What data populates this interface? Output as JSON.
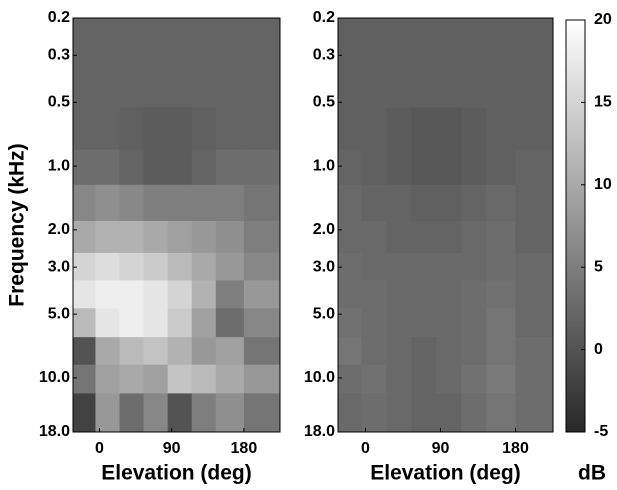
{
  "chart_data": [
    {
      "type": "heatmap",
      "xlabel": "Elevation (deg)",
      "ylabel": "Frequency (kHz)",
      "cmap": "gray",
      "log_y": true,
      "xlim": [
        -33,
        225
      ],
      "xticks": [
        0,
        90,
        180
      ],
      "ylim": [
        0.2,
        18
      ],
      "yticks": [
        0.2,
        0.3,
        0.5,
        {
          "value": 1,
          "label": "1.0"
        },
        {
          "value": 2,
          "label": "2.0"
        },
        {
          "value": 3,
          "label": "3.0"
        },
        {
          "value": 5,
          "label": "5.0"
        },
        {
          "value": 10,
          "label": "10.0"
        },
        {
          "value": 18,
          "label": "18.0"
        }
      ],
      "zlim": [
        -5,
        20
      ],
      "x": [
        -20,
        10,
        40,
        70,
        100,
        130,
        160,
        200
      ],
      "y": [
        0.25,
        0.4,
        0.7,
        1.0,
        1.5,
        2.2,
        3.0,
        4.0,
        5.5,
        7.5,
        10,
        14
      ],
      "z": [
        [
          2,
          2,
          2,
          2,
          2,
          2,
          2,
          2
        ],
        [
          2,
          2,
          2,
          2,
          2,
          2,
          2,
          2
        ],
        [
          2,
          2,
          1.5,
          1,
          1,
          1.5,
          2,
          2
        ],
        [
          3,
          3,
          2,
          1,
          1,
          2,
          3,
          3
        ],
        [
          6,
          7,
          6,
          5,
          5,
          5,
          5,
          4
        ],
        [
          10,
          11,
          11,
          10,
          9,
          8,
          7,
          5
        ],
        [
          15,
          16,
          15,
          14,
          12,
          10,
          8,
          6
        ],
        [
          17,
          18,
          18,
          17,
          15,
          11,
          5,
          8
        ],
        [
          12,
          17,
          18,
          17,
          14,
          9,
          3,
          6
        ],
        [
          0,
          10,
          12,
          13,
          11,
          8,
          9,
          4
        ],
        [
          4,
          9,
          10,
          9,
          13,
          12,
          10,
          8
        ],
        [
          -2,
          8,
          3,
          6,
          0,
          5,
          7,
          4
        ]
      ]
    },
    {
      "type": "heatmap",
      "xlabel": "Elevation (deg)",
      "cmap": "gray",
      "log_y": true,
      "xlim": [
        -33,
        225
      ],
      "xticks": [
        0,
        90,
        180
      ],
      "ylim": [
        0.2,
        18
      ],
      "yticks": [
        0.2,
        0.3,
        0.5,
        {
          "value": 1,
          "label": "1.0"
        },
        {
          "value": 2,
          "label": "2.0"
        },
        {
          "value": 3,
          "label": "3.0"
        },
        {
          "value": 5,
          "label": "5.0"
        },
        {
          "value": 10,
          "label": "10.0"
        },
        {
          "value": 18,
          "label": "18.0"
        }
      ],
      "zlim": [
        -5,
        20
      ],
      "zticks": [
        -5,
        0,
        5,
        10,
        15,
        20
      ],
      "colorbar_label": "dB",
      "x": [
        -20,
        10,
        40,
        70,
        100,
        130,
        160,
        200
      ],
      "y": [
        0.25,
        0.4,
        0.7,
        1.0,
        1.5,
        2.2,
        3.0,
        4.0,
        5.5,
        7.5,
        10,
        14
      ],
      "z": [
        [
          1.5,
          1.5,
          1.5,
          1.5,
          1.5,
          1.5,
          1.5,
          1.5
        ],
        [
          1.5,
          1.5,
          1.5,
          1.5,
          1.5,
          1.5,
          1.5,
          1.5
        ],
        [
          1.5,
          1.5,
          1,
          0.5,
          0.5,
          1,
          1.5,
          1.5
        ],
        [
          2,
          1.5,
          1,
          0.5,
          0.5,
          1,
          1.5,
          2
        ],
        [
          2.5,
          2,
          2,
          1.5,
          1.5,
          2,
          2.5,
          2
        ],
        [
          2.5,
          2.5,
          2,
          2,
          2,
          2.5,
          3,
          2
        ],
        [
          3,
          2.5,
          2.5,
          2.5,
          2.5,
          2.5,
          3,
          2.5
        ],
        [
          3,
          3,
          2.5,
          2.5,
          2.5,
          3,
          3.5,
          2.5
        ],
        [
          3.5,
          3,
          2.5,
          2.5,
          2.5,
          3,
          4,
          2.5
        ],
        [
          4,
          3,
          2.5,
          2,
          2.5,
          3,
          4,
          3
        ],
        [
          3,
          3.5,
          2.5,
          2,
          2.5,
          3.5,
          4.5,
          3
        ],
        [
          2.5,
          3,
          2.5,
          2,
          2,
          3,
          4,
          3
        ]
      ]
    }
  ]
}
